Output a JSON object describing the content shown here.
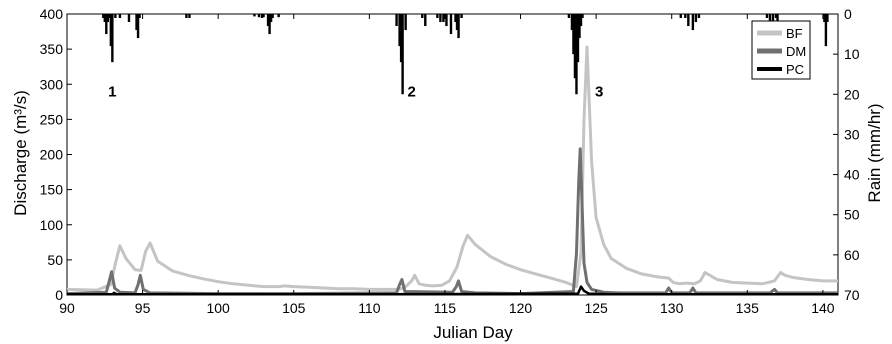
{
  "chart_data": {
    "type": "line",
    "xlabel": "Julian Day",
    "ylabel_left": "Discharge (m³/s)",
    "ylabel_right": "Rain (mm/hr)",
    "xlim": [
      90,
      141
    ],
    "ylim_left": [
      0,
      400
    ],
    "ylim_right_inverted": [
      0,
      70
    ],
    "x_ticks": [
      90,
      95,
      100,
      105,
      110,
      115,
      120,
      125,
      130,
      135,
      140
    ],
    "y_ticks_left": [
      0,
      50,
      100,
      150,
      200,
      250,
      300,
      350,
      400
    ],
    "y_ticks_right": [
      0,
      10,
      20,
      30,
      40,
      50,
      60,
      70
    ],
    "legend_position": "top-right",
    "legend": [
      "BF",
      "DM",
      "PC"
    ],
    "colors": {
      "BF": "#c4c4c4",
      "DM": "#707070",
      "PC": "#000000"
    },
    "event_labels": [
      {
        "text": "1",
        "x": 93.0,
        "y": 290
      },
      {
        "text": "2",
        "x": 112.8,
        "y": 290
      },
      {
        "text": "3",
        "x": 125.2,
        "y": 290
      }
    ],
    "series": [
      {
        "name": "BF",
        "axis": "left",
        "x": [
          90,
          92,
          92.9,
          93.2,
          93.5,
          93.9,
          94.5,
          94.9,
          95.2,
          95.5,
          96,
          97,
          98,
          99,
          100,
          101,
          102,
          103,
          104,
          104.4,
          105,
          106,
          107,
          108,
          109,
          110,
          111,
          111.8,
          112.3,
          112.8,
          113,
          113.3,
          113.7,
          114.2,
          114.8,
          115.3,
          115.8,
          116.2,
          116.5,
          117,
          118,
          119,
          120,
          121,
          122,
          123,
          123.7,
          124.0,
          124.2,
          124.4,
          124.7,
          125,
          125.5,
          126,
          127,
          128,
          129,
          129.8,
          130.1,
          130.5,
          131,
          131.5,
          131.9,
          132.2,
          132.6,
          133,
          134,
          135,
          136,
          136.8,
          137.2,
          137.5,
          138,
          139,
          140,
          141
        ],
        "values": [
          8,
          7,
          15,
          45,
          70,
          52,
          36,
          35,
          62,
          74,
          48,
          34,
          28,
          23,
          19,
          16,
          14,
          12,
          12,
          13,
          12,
          11,
          10,
          9,
          9,
          8,
          8,
          8,
          10,
          20,
          28,
          16,
          14,
          13,
          14,
          20,
          40,
          70,
          85,
          72,
          55,
          44,
          36,
          30,
          24,
          18,
          12,
          60,
          250,
          353,
          190,
          110,
          72,
          52,
          38,
          30,
          26,
          24,
          18,
          16,
          17,
          16,
          20,
          32,
          27,
          22,
          18,
          17,
          16,
          20,
          32,
          28,
          25,
          22,
          20,
          20
        ]
      },
      {
        "name": "DM",
        "axis": "left",
        "x": [
          90,
          92.6,
          92.8,
          92.95,
          93.15,
          93.5,
          94.5,
          94.7,
          94.85,
          95.05,
          95.5,
          100,
          105,
          111.8,
          112.0,
          112.15,
          112.35,
          115.5,
          115.75,
          115.9,
          116.1,
          117,
          120,
          123.5,
          123.7,
          123.85,
          123.95,
          124.05,
          124.2,
          124.4,
          124.7,
          125.5,
          126.5,
          129.6,
          129.8,
          130.0,
          131.2,
          131.4,
          131.6,
          136.5,
          136.8,
          137.0,
          141
        ],
        "values": [
          2,
          4,
          20,
          33,
          10,
          4,
          3,
          15,
          28,
          8,
          3,
          2,
          2,
          3,
          15,
          22,
          5,
          4,
          12,
          20,
          5,
          3,
          2,
          5,
          60,
          160,
          208,
          140,
          45,
          18,
          8,
          4,
          3,
          3,
          10,
          3,
          3,
          10,
          3,
          3,
          8,
          3,
          3
        ]
      },
      {
        "name": "PC",
        "axis": "left",
        "x": [
          90,
          93,
          93.1,
          93.3,
          95,
          110,
          123.8,
          124.0,
          124.2,
          124.5,
          126,
          141
        ],
        "values": [
          1,
          1,
          3,
          1,
          1,
          1,
          2,
          12,
          6,
          2,
          1,
          1
        ]
      },
      {
        "name": "Rain",
        "axis": "right",
        "type": "bar",
        "x": [
          92.4,
          92.5,
          92.6,
          92.7,
          92.8,
          92.9,
          93.0,
          93.2,
          93.5,
          94.1,
          94.6,
          94.7,
          94.8,
          97.9,
          98.1,
          102.4,
          102.7,
          102.9,
          103.0,
          103.3,
          103.4,
          103.5,
          103.6,
          104.0,
          111.8,
          112.0,
          112.1,
          112.2,
          112.4,
          113.5,
          113.7,
          114.5,
          114.7,
          114.9,
          115.1,
          115.4,
          115.7,
          115.8,
          115.9,
          116.1,
          123.2,
          123.4,
          123.5,
          123.6,
          123.7,
          123.8,
          123.9,
          124.0,
          124.1,
          130.6,
          130.9,
          131.1,
          131.4,
          131.6,
          131.8,
          136.3,
          136.5,
          136.7,
          136.9,
          137.0,
          140.1,
          140.2,
          140.3
        ],
        "values": [
          1,
          2,
          5,
          2,
          1,
          8,
          12,
          1,
          1,
          2,
          4,
          6,
          1,
          1,
          1,
          0.6,
          0.8,
          1,
          0.8,
          3,
          5,
          2,
          1,
          0.8,
          3,
          8,
          12,
          20,
          4,
          1,
          3,
          1,
          2,
          2,
          3,
          5,
          2,
          4,
          6,
          1,
          1,
          4,
          10,
          16,
          20,
          12,
          6,
          3,
          1,
          1,
          1,
          3,
          4,
          2,
          1,
          1,
          4,
          2,
          1,
          4,
          2,
          8,
          2
        ]
      }
    ]
  }
}
